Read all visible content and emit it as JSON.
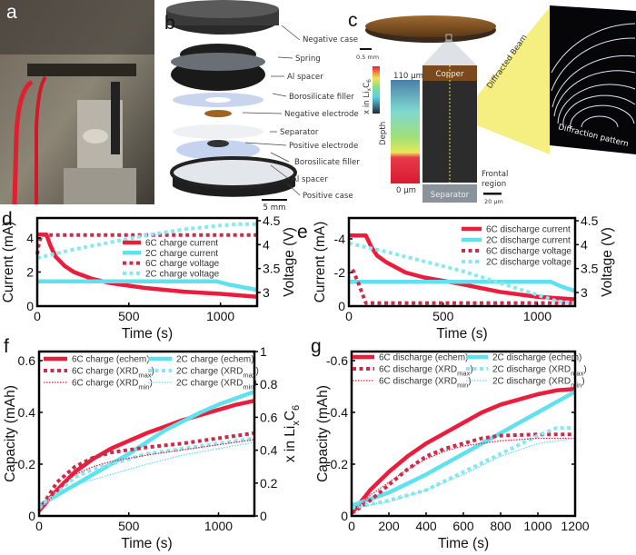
{
  "panels": {
    "a": {
      "letter": "a"
    },
    "b": {
      "letter": "b",
      "labels": [
        "Negative case",
        "Spring",
        "Al spacer",
        "Borosilicate filler",
        "Negative electrode",
        "Separator",
        "Positive electrode",
        "Borosilicate filler",
        "Al spacer",
        "Positive case"
      ],
      "scale": "5 mm"
    },
    "c": {
      "letter": "c",
      "scale_top": "0.5 mm",
      "colorbar_label": {
        "prefix": "x in Li",
        "sub1": "x",
        "mid": "C",
        "sub2": "6"
      },
      "depth_label": "Depth",
      "depth_top": "110 µm",
      "depth_bottom": "0 µm",
      "copper": "Copper",
      "separator": "Separator",
      "frontal": [
        "Frontal",
        "region"
      ],
      "scale_bottom": "20 µm",
      "beam": "Diffracted Beam",
      "pattern": "Diffraction pattern",
      "colors": {
        "copper": "#7a4a1c",
        "beam": "#f2ec6a"
      }
    }
  },
  "colors": {
    "c6": "#ea1e3c",
    "c6_dash": "#cc2c4c",
    "c2": "#5fe1ee",
    "c2_dash": "#86e9f2"
  },
  "chart_data": [
    {
      "panel": "d",
      "type": "line",
      "xlabel": "Time (s)",
      "ylabel_left": "Current (mA)",
      "ylabel_right": "Voltage (V)",
      "xlim": [
        0,
        1200
      ],
      "ylim_left": [
        0,
        5.17
      ],
      "ylim_right": [
        2.715,
        4.557
      ],
      "xticks": [
        "0",
        "500",
        "1000"
      ],
      "yticks_left": [
        "0",
        "2",
        "4"
      ],
      "yticks_right": [
        "3",
        "3.5",
        "4",
        "4.5"
      ],
      "legend": "right",
      "series": [
        {
          "name": "6C charge current",
          "axis": "left",
          "style": "solid",
          "color": "#ea1e3c",
          "x": [
            0,
            50,
            70,
            100,
            150,
            200,
            300,
            400,
            500,
            600,
            800,
            1000,
            1200
          ],
          "y": [
            4.2,
            4.2,
            3.6,
            2.9,
            2.35,
            2.0,
            1.6,
            1.35,
            1.2,
            1.05,
            0.85,
            0.72,
            0.55
          ]
        },
        {
          "name": "2C charge current",
          "axis": "left",
          "style": "solid",
          "color": "#5fe1ee",
          "x": [
            0,
            980,
            1050,
            1200
          ],
          "y": [
            1.45,
            1.45,
            1.25,
            0.95
          ]
        },
        {
          "name": "6C charge voltage",
          "axis": "right",
          "style": "dashed",
          "color": "#cc2c4c",
          "x": [
            0,
            10,
            25,
            1200
          ],
          "y": [
            3.8,
            4.05,
            4.2,
            4.2
          ]
        },
        {
          "name": "2C charge voltage",
          "axis": "right",
          "style": "dashed",
          "color": "#86e9f2",
          "x": [
            0,
            200,
            400,
            600,
            800,
            1000,
            1100,
            1200
          ],
          "y": [
            3.72,
            3.9,
            4.05,
            4.2,
            4.32,
            4.4,
            4.43,
            4.43
          ]
        }
      ]
    },
    {
      "panel": "e",
      "type": "line",
      "xlabel": "Time (s)",
      "ylabel_left": "Current (mA)",
      "ylabel_right": "Voltage (V)",
      "xlim": [
        0,
        1200
      ],
      "ylim_left": [
        0,
        -5.24
      ],
      "ylim_right": [
        2.715,
        4.557
      ],
      "xticks": [
        "0",
        "500",
        "1000"
      ],
      "yticks_left": [
        "0",
        "-2",
        "-4"
      ],
      "yticks_right": [
        "3",
        "3.5",
        "4",
        "4.5"
      ],
      "legend": "top-right",
      "series": [
        {
          "name": "6C discharge current",
          "axis": "left",
          "style": "solid",
          "color": "#ea1e3c",
          "x": [
            0,
            90,
            120,
            150,
            200,
            300,
            400,
            500,
            600,
            800,
            1000,
            1200
          ],
          "y": [
            -4.2,
            -4.2,
            -3.5,
            -3.0,
            -2.6,
            -2.0,
            -1.7,
            -1.5,
            -1.3,
            -0.85,
            -0.55,
            -0.4
          ]
        },
        {
          "name": "2C discharge current",
          "axis": "left",
          "style": "solid",
          "color": "#5fe1ee",
          "x": [
            0,
            1070,
            1130,
            1200
          ],
          "y": [
            -1.45,
            -1.45,
            -1.15,
            -0.9
          ]
        },
        {
          "name": "6C discharge voltage",
          "axis": "right",
          "style": "dashed",
          "color": "#cc2c4c",
          "x": [
            20,
            50,
            90,
            1200
          ],
          "y": [
            3.48,
            3.2,
            2.78,
            2.78
          ]
        },
        {
          "name": "2C discharge voltage",
          "axis": "right",
          "style": "dashed",
          "color": "#86e9f2",
          "x": [
            0,
            200,
            400,
            600,
            800,
            1000,
            1100,
            1200
          ],
          "y": [
            4.03,
            3.85,
            3.65,
            3.45,
            3.2,
            2.95,
            2.82,
            2.78
          ]
        }
      ]
    },
    {
      "panel": "f",
      "type": "line",
      "xlabel": "Time (s)",
      "ylabel_left": "Capacity (mAh)",
      "ylabel_right": {
        "prefix": "x in Li",
        "sub1": "x",
        "mid": "C",
        "sub2": "6"
      },
      "xlim": [
        0,
        1200
      ],
      "ylim_left": [
        0,
        0.635
      ],
      "ylim_right": [
        0,
        1
      ],
      "xticks": [
        "0",
        "500",
        "1000"
      ],
      "yticks_left": [
        "0",
        "0.2",
        "0.4",
        "0.6"
      ],
      "yticks_right": [
        "0",
        "0.2",
        "0.4",
        "0.6",
        "0.8",
        "1"
      ],
      "legend": "top",
      "series": [
        {
          "name": "6C charge (echem)",
          "axis": "left",
          "style": "solid",
          "color": "#ea1e3c",
          "x": [
            0,
            50,
            100,
            200,
            300,
            400,
            500,
            600,
            700,
            800,
            900,
            1000,
            1100,
            1200
          ],
          "y": [
            0.02,
            0.06,
            0.1,
            0.17,
            0.22,
            0.26,
            0.29,
            0.32,
            0.345,
            0.37,
            0.39,
            0.41,
            0.43,
            0.445
          ]
        },
        {
          "name": "2C charge (echem)",
          "axis": "left",
          "style": "solid",
          "color": "#5fe1ee",
          "x": [
            0,
            100,
            200,
            300,
            400,
            500,
            600,
            700,
            800,
            900,
            1000,
            1100,
            1200
          ],
          "y": [
            0.04,
            0.08,
            0.12,
            0.16,
            0.2,
            0.24,
            0.285,
            0.33,
            0.365,
            0.4,
            0.43,
            0.455,
            0.48
          ]
        },
        {
          "name": "6C charge (XRD",
          "sub": "max",
          "end": ")",
          "axis": "left",
          "style": "dashed",
          "color": "#cc2c4c",
          "x": [
            0,
            100,
            200,
            300,
            400,
            500,
            600,
            800,
            1000,
            1200
          ],
          "y": [
            0.02,
            0.13,
            0.19,
            0.225,
            0.245,
            0.255,
            0.265,
            0.28,
            0.3,
            0.32
          ]
        },
        {
          "name": "2C charge (XRD",
          "sub": "max",
          "end": ")",
          "axis": "left",
          "style": "dashed",
          "color": "#86e9f2",
          "x": [
            0,
            100,
            200,
            300,
            400,
            600,
            800,
            1000,
            1200
          ],
          "y": [
            0.03,
            0.09,
            0.15,
            0.18,
            0.2,
            0.24,
            0.26,
            0.28,
            0.3
          ]
        },
        {
          "name": "6C charge (XRD",
          "sub": "min",
          "end": ")",
          "axis": "left",
          "style": "dotted",
          "color": "#ea1e3c",
          "x": [
            0,
            100,
            200,
            300,
            400,
            600,
            800,
            1000,
            1200
          ],
          "y": [
            0.01,
            0.1,
            0.16,
            0.19,
            0.21,
            0.235,
            0.255,
            0.275,
            0.295
          ]
        },
        {
          "name": "2C charge (XRD",
          "sub": "min",
          "end": ")",
          "axis": "left",
          "style": "dotted",
          "color": "#5fe1ee",
          "x": [
            0,
            100,
            200,
            400,
            600,
            800,
            1000,
            1200
          ],
          "y": [
            0.03,
            0.08,
            0.12,
            0.16,
            0.2,
            0.235,
            0.26,
            0.285
          ]
        }
      ]
    },
    {
      "panel": "g",
      "type": "line",
      "xlabel": "Time (s)",
      "ylabel_left": "Capacity (mAh)",
      "xlim": [
        0,
        1200
      ],
      "ylim_left": [
        0,
        -0.635
      ],
      "xticks": [
        "0",
        "200",
        "400",
        "600",
        "800",
        "1000",
        "1200"
      ],
      "yticks_left": [
        "0",
        "-0.2",
        "-0.4",
        "-0.6"
      ],
      "legend": "top",
      "series": [
        {
          "name": "6C discharge (echem)",
          "axis": "left",
          "style": "solid",
          "color": "#ea1e3c",
          "x": [
            0,
            100,
            200,
            300,
            400,
            500,
            600,
            700,
            800,
            900,
            1000,
            1100,
            1200
          ],
          "y": [
            -0.01,
            -0.1,
            -0.17,
            -0.23,
            -0.28,
            -0.32,
            -0.36,
            -0.4,
            -0.43,
            -0.45,
            -0.47,
            -0.485,
            -0.49
          ]
        },
        {
          "name": "2C discharge (echem)",
          "axis": "left",
          "style": "solid",
          "color": "#5fe1ee",
          "x": [
            0,
            200,
            400,
            600,
            800,
            1000,
            1200
          ],
          "y": [
            -0.04,
            -0.09,
            -0.16,
            -0.24,
            -0.32,
            -0.4,
            -0.48
          ]
        },
        {
          "name": "6C discharge (XRD",
          "sub": "max",
          "end": ")",
          "axis": "left",
          "style": "dashed",
          "color": "#cc2c4c",
          "x": [
            0,
            100,
            200,
            300,
            400,
            500,
            600,
            700,
            800,
            1000,
            1200
          ],
          "y": [
            -0.01,
            -0.06,
            -0.12,
            -0.18,
            -0.23,
            -0.26,
            -0.28,
            -0.3,
            -0.31,
            -0.315,
            -0.315
          ]
        },
        {
          "name": "2C discharge (XRD",
          "sub": "max",
          "end": ")",
          "axis": "left",
          "style": "dashed",
          "color": "#86e9f2",
          "x": [
            0,
            200,
            400,
            600,
            800,
            1000,
            1100,
            1200
          ],
          "y": [
            -0.03,
            -0.06,
            -0.1,
            -0.17,
            -0.24,
            -0.31,
            -0.34,
            -0.34
          ]
        },
        {
          "name": "6C discharge (XRD",
          "sub": "min",
          "end": ")",
          "axis": "left",
          "style": "dotted",
          "color": "#ea1e3c",
          "x": [
            0,
            100,
            200,
            300,
            400,
            500,
            600,
            800,
            1000,
            1200
          ],
          "y": [
            -0.01,
            -0.08,
            -0.13,
            -0.18,
            -0.22,
            -0.25,
            -0.27,
            -0.29,
            -0.3,
            -0.3
          ]
        },
        {
          "name": "2C discharge (XRD",
          "sub": "min",
          "end": ")",
          "axis": "left",
          "style": "dotted",
          "color": "#5fe1ee",
          "x": [
            0,
            200,
            400,
            600,
            800,
            1000,
            1200
          ],
          "y": [
            -0.03,
            -0.055,
            -0.1,
            -0.16,
            -0.23,
            -0.28,
            -0.3
          ]
        }
      ]
    }
  ]
}
